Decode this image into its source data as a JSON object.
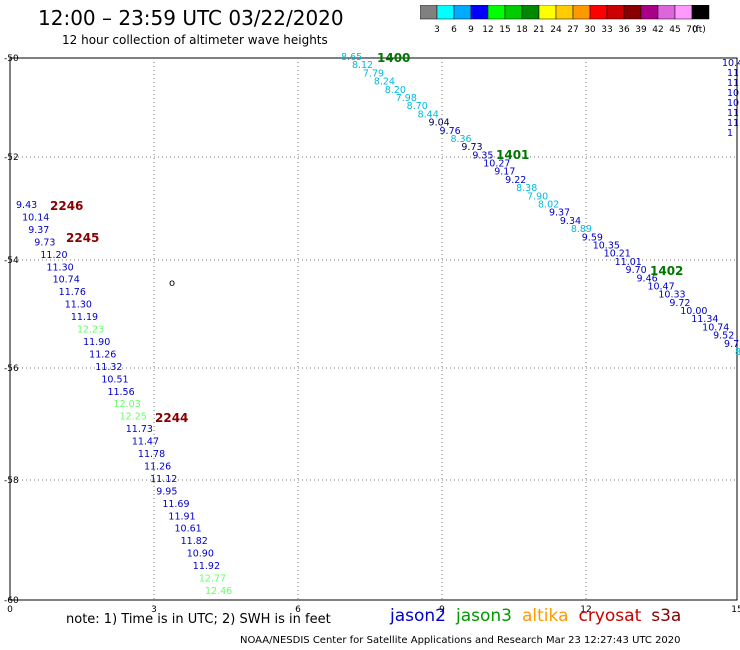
{
  "header": {
    "title": "12:00 – 23:59 UTC 03/22/2020",
    "subtitle": "12 hour collection of altimeter wave heights"
  },
  "colorbar": {
    "colors": [
      "#808080",
      "#00ffff",
      "#00aaff",
      "#0000ff",
      "#00ff00",
      "#00cc00",
      "#008800",
      "#ffff00",
      "#ffcc00",
      "#ff9900",
      "#ff0000",
      "#cc0000",
      "#880000",
      "#aa0088",
      "#dd66dd",
      "#ff99ff",
      "#000000"
    ],
    "labels": [
      "3",
      "6",
      "9",
      "12",
      "15",
      "18",
      "21",
      "24",
      "27",
      "30",
      "33",
      "36",
      "39",
      "42",
      "45",
      "70"
    ],
    "unit": "(ft)"
  },
  "map": {
    "x_ticks": [
      "0",
      "3",
      "6",
      "9",
      "12",
      "15"
    ],
    "y_ticks": [
      "-50",
      "-52",
      "-54",
      "-56",
      "-58",
      "-60"
    ],
    "x_range": [
      0,
      15
    ],
    "y_range": [
      -50,
      -60
    ]
  },
  "tracks": {
    "colors": {
      "jason2": "#0000cc",
      "jason3": "#007700",
      "altika": "#ff8800",
      "cryosat": "#cc0000",
      "s3a": "#880000",
      "light_green": "#66ff66",
      "cyan": "#00bbdd",
      "dark_navy": "#000055"
    },
    "track_1400": {
      "orbit_label": "1400",
      "observations": [
        {
          "v": "8.65",
          "c": "cyan"
        },
        {
          "v": "8.12",
          "c": "cyan"
        },
        {
          "v": "7.79",
          "c": "cyan"
        },
        {
          "v": "8.24",
          "c": "cyan"
        },
        {
          "v": "8.20",
          "c": "cyan"
        },
        {
          "v": "7.98",
          "c": "cyan"
        },
        {
          "v": "8.70",
          "c": "cyan"
        },
        {
          "v": "8.44",
          "c": "cyan"
        },
        {
          "v": "9.04",
          "c": "dark_navy"
        },
        {
          "v": "9.76",
          "c": "jason2"
        },
        {
          "v": "8.36",
          "c": "cyan"
        },
        {
          "v": "9.73",
          "c": "dark_navy"
        },
        {
          "v": "9.35",
          "c": "jason2"
        },
        {
          "v": "10.27",
          "c": "jason2"
        },
        {
          "v": "9.17",
          "c": "jason2"
        },
        {
          "v": "9.22",
          "c": "jason2"
        },
        {
          "v": "8.38",
          "c": "cyan"
        },
        {
          "v": "7.90",
          "c": "cyan"
        },
        {
          "v": "8.02",
          "c": "cyan"
        },
        {
          "v": "9.37",
          "c": "jason2"
        },
        {
          "v": "9.34",
          "c": "jason2"
        },
        {
          "v": "8.89",
          "c": "cyan"
        },
        {
          "v": "9.59",
          "c": "jason2"
        },
        {
          "v": "10.35",
          "c": "jason2"
        },
        {
          "v": "10.21",
          "c": "jason2"
        },
        {
          "v": "11.01",
          "c": "jason2"
        },
        {
          "v": "9.70",
          "c": "jason2"
        },
        {
          "v": "9.46",
          "c": "jason2"
        },
        {
          "v": "10.47",
          "c": "jason2"
        },
        {
          "v": "10.33",
          "c": "jason2"
        },
        {
          "v": "9.72",
          "c": "jason2"
        },
        {
          "v": "10.00",
          "c": "jason2"
        },
        {
          "v": "11.34",
          "c": "jason2"
        },
        {
          "v": "10.74",
          "c": "jason2"
        },
        {
          "v": "9.52",
          "c": "jason2"
        },
        {
          "v": "9.7",
          "c": "jason2"
        },
        {
          "v": "8",
          "c": "cyan"
        }
      ],
      "orbit_markers": [
        "1400",
        "1401",
        "1402"
      ]
    },
    "track_2246": {
      "orbit_markers": [
        "2246",
        "2245",
        "2244"
      ],
      "observations": [
        {
          "v": "9.43",
          "c": "jason2"
        },
        {
          "v": "10.14",
          "c": "jason2"
        },
        {
          "v": "9.37",
          "c": "jason2"
        },
        {
          "v": "9.73",
          "c": "jason2"
        },
        {
          "v": "11.20",
          "c": "jason2"
        },
        {
          "v": "11.30",
          "c": "jason2"
        },
        {
          "v": "10.74",
          "c": "jason2"
        },
        {
          "v": "11.76",
          "c": "jason2"
        },
        {
          "v": "11.30",
          "c": "jason2"
        },
        {
          "v": "11.19",
          "c": "jason2"
        },
        {
          "v": "12.23",
          "c": "light_green"
        },
        {
          "v": "11.90",
          "c": "jason2"
        },
        {
          "v": "11.26",
          "c": "jason2"
        },
        {
          "v": "11.32",
          "c": "jason2"
        },
        {
          "v": "10.51",
          "c": "jason2"
        },
        {
          "v": "11.56",
          "c": "jason2"
        },
        {
          "v": "12.03",
          "c": "light_green"
        },
        {
          "v": "12.25",
          "c": "light_green"
        },
        {
          "v": "11.73",
          "c": "jason2"
        },
        {
          "v": "11.47",
          "c": "jason2"
        },
        {
          "v": "11.78",
          "c": "jason2"
        },
        {
          "v": "11.26",
          "c": "jason2"
        },
        {
          "v": "11.12",
          "c": "jason2"
        },
        {
          "v": "9.95",
          "c": "jason2"
        },
        {
          "v": "11.69",
          "c": "jason2"
        },
        {
          "v": "11.91",
          "c": "jason2"
        },
        {
          "v": "10.61",
          "c": "jason2"
        },
        {
          "v": "11.82",
          "c": "jason2"
        },
        {
          "v": "10.90",
          "c": "jason2"
        },
        {
          "v": "11.92",
          "c": "jason2"
        },
        {
          "v": "12.77",
          "c": "light_green"
        },
        {
          "v": "12.46",
          "c": "light_green"
        }
      ]
    },
    "edge_values": [
      "10.4",
      "11",
      "11",
      "10",
      "10",
      "11",
      "11",
      "1"
    ],
    "land_marker": "o"
  },
  "footer": {
    "note": "note:  1) Time is in UTC;  2) SWH is in feet",
    "legend": [
      {
        "label": "jason2",
        "color": "#0000cc"
      },
      {
        "label": "jason3",
        "color": "#009900"
      },
      {
        "label": "altika",
        "color": "#ff9900"
      },
      {
        "label": "cryosat",
        "color": "#cc0000"
      },
      {
        "label": "s3a",
        "color": "#880000"
      }
    ],
    "credit": "NOAA/NESDIS Center for Satellite Applications and Research     Mar 23 12:27:43 UTC 2020"
  }
}
